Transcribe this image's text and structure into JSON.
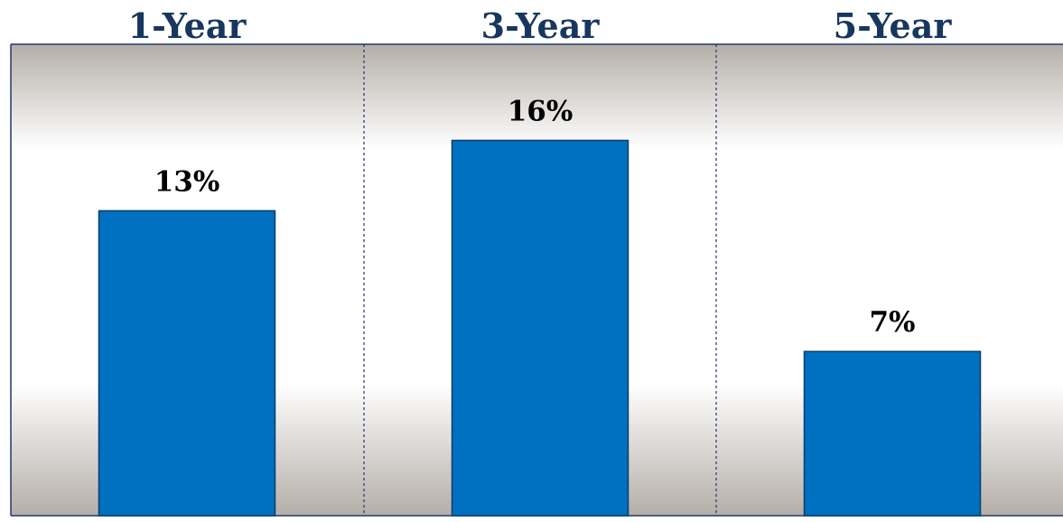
{
  "colors": {
    "bar": "#0070c0",
    "bar_stroke": "#0a3d6b",
    "category_label": "#17375e",
    "value_label": "#000000",
    "panel_gray": "#b4aea8",
    "panel_light": "#ffffff",
    "divider": "#1f3864"
  },
  "chart_data": {
    "type": "bar",
    "categories": [
      "1-Year",
      "3-Year",
      "5-Year"
    ],
    "values": [
      13,
      16,
      7
    ],
    "value_labels": [
      "13%",
      "16%",
      "7%"
    ],
    "ylim": [
      0,
      20.1
    ],
    "grid": false,
    "legend": "none"
  }
}
